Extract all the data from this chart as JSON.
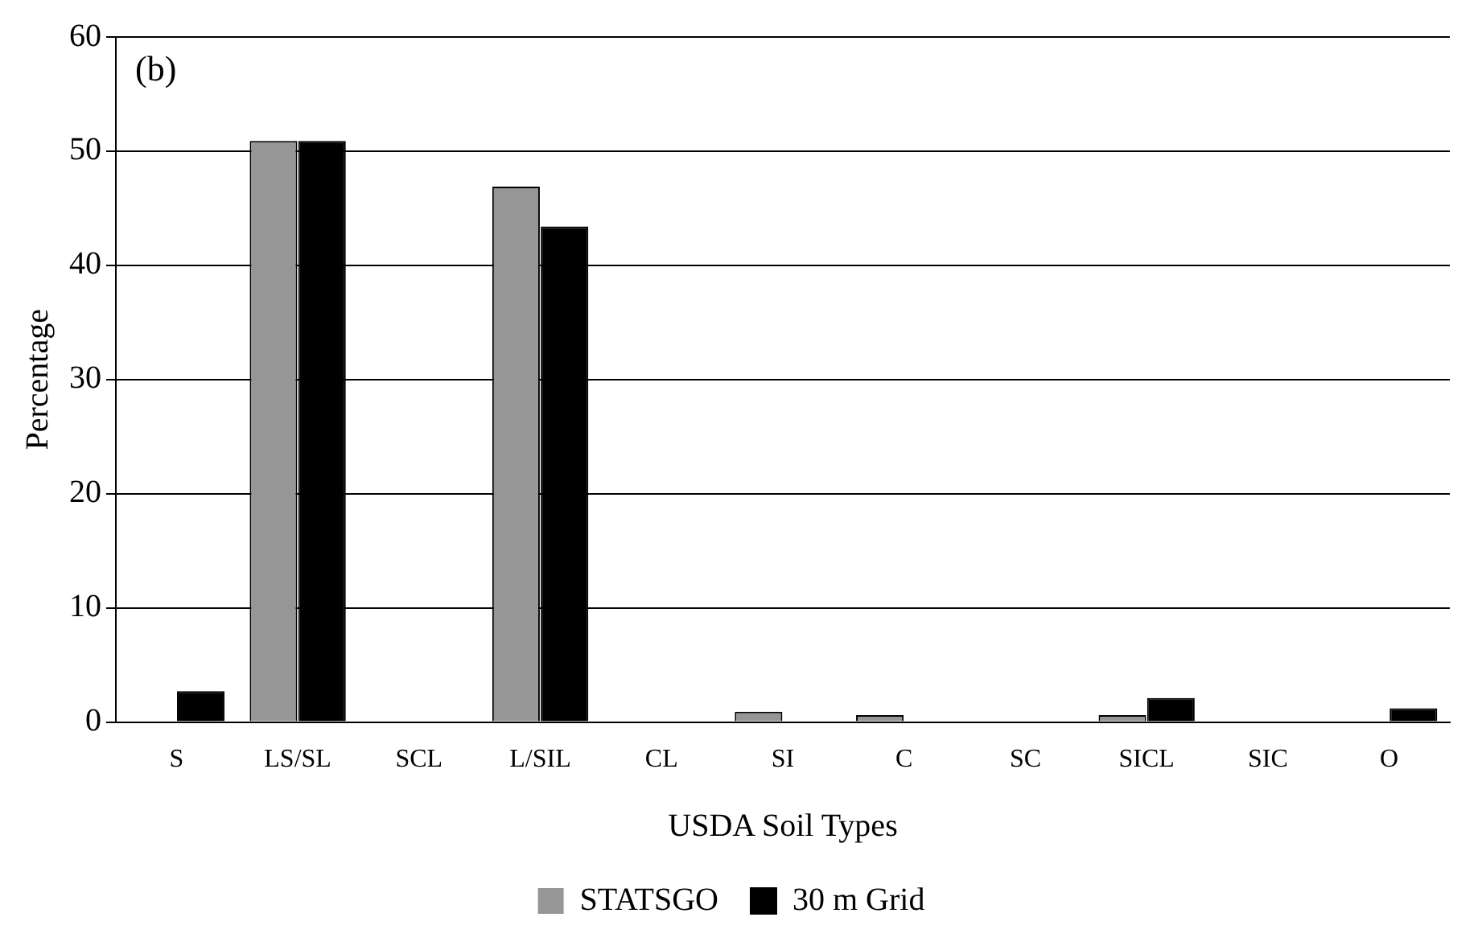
{
  "chart_data": {
    "type": "bar",
    "xlabel": "USDA Soil Types",
    "ylabel": "Percentage",
    "annotations": [
      "(b)"
    ],
    "categories": [
      "S",
      "LS/SL",
      "SCL",
      "L/SIL",
      "CL",
      "SI",
      "C",
      "SC",
      "SICL",
      "SIC",
      "O"
    ],
    "series": [
      {
        "name": "STATSGO",
        "color": "#969696",
        "values": [
          0,
          50.9,
          0,
          46.9,
          0,
          0.9,
          0.6,
          0,
          0.6,
          0,
          0
        ]
      },
      {
        "name": "30 m Grid",
        "color": "#000000",
        "values": [
          2.7,
          50.9,
          0,
          43.4,
          0,
          0,
          0,
          0,
          2.1,
          0,
          1.2
        ]
      }
    ],
    "ylim": [
      0,
      60
    ],
    "yticks": [
      0,
      10,
      20,
      30,
      40,
      50,
      60
    ],
    "grid": "y",
    "legend": "bottom"
  }
}
